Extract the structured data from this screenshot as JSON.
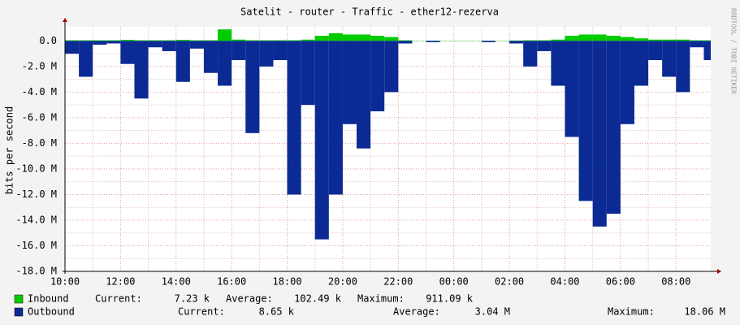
{
  "chart_data": {
    "type": "area",
    "title": "Satelit - router - Traffic - ether12-rezerva",
    "y_label": "bits per second",
    "side_text": "RRDTOOL / TOBI OETIKER",
    "x": [
      10,
      10.5,
      11,
      11.5,
      12,
      12.5,
      13,
      13.5,
      14,
      14.5,
      15,
      15.5,
      16,
      16.5,
      17,
      17.5,
      18,
      18.5,
      19,
      19.5,
      20,
      20.5,
      21,
      21.5,
      22,
      22.5,
      23,
      23.5,
      24,
      24.5,
      25,
      25.5,
      26,
      26.5,
      27,
      27.5,
      28,
      28.5,
      29,
      29.5,
      30,
      30.5,
      31,
      31.5,
      32,
      32.5,
      33
    ],
    "xlim": [
      10,
      33.25
    ],
    "xticks": [
      {
        "value": 10,
        "label": "10:00"
      },
      {
        "value": 12,
        "label": "12:00"
      },
      {
        "value": 14,
        "label": "14:00"
      },
      {
        "value": 16,
        "label": "16:00"
      },
      {
        "value": 18,
        "label": "18:00"
      },
      {
        "value": 20,
        "label": "20:00"
      },
      {
        "value": 22,
        "label": "22:00"
      },
      {
        "value": 24,
        "label": "00:00"
      },
      {
        "value": 26,
        "label": "02:00"
      },
      {
        "value": 28,
        "label": "04:00"
      },
      {
        "value": 30,
        "label": "06:00"
      },
      {
        "value": 32,
        "label": "08:00"
      }
    ],
    "ylim": [
      -18000000,
      1100000
    ],
    "yticks": [
      {
        "value": 0,
        "label": "0.0"
      },
      {
        "value": -2000000,
        "label": "-2.0 M"
      },
      {
        "value": -4000000,
        "label": "-4.0 M"
      },
      {
        "value": -6000000,
        "label": "-6.0 M"
      },
      {
        "value": -8000000,
        "label": "-8.0 M"
      },
      {
        "value": -10000000,
        "label": "-10.0 M"
      },
      {
        "value": -12000000,
        "label": "-12.0 M"
      },
      {
        "value": -14000000,
        "label": "-14.0 M"
      },
      {
        "value": -16000000,
        "label": "-16.0 M"
      },
      {
        "value": -18000000,
        "label": "-18.0 M"
      }
    ],
    "grid": true,
    "stat_labels": [
      "Current:",
      "Average:",
      "Maximum:"
    ],
    "series": [
      {
        "name": "Inbound",
        "color": "#00cc00",
        "current": "7.23 k",
        "average": "102.49 k",
        "maximum": "911.09 k",
        "values": [
          50000,
          50000,
          50000,
          50000,
          80000,
          50000,
          50000,
          50000,
          80000,
          50000,
          50000,
          900000,
          100000,
          50000,
          50000,
          50000,
          50000,
          100000,
          400000,
          600000,
          500000,
          500000,
          400000,
          300000,
          50000,
          20000,
          20000,
          20000,
          20000,
          20000,
          20000,
          20000,
          30000,
          50000,
          50000,
          100000,
          400000,
          500000,
          500000,
          400000,
          300000,
          200000,
          100000,
          100000,
          100000,
          50000,
          50000
        ]
      },
      {
        "name": "Outbound",
        "color": "#0c2a94",
        "current": "8.65 k",
        "average": "3.04 M",
        "maximum": "18.06 M",
        "values": [
          -1000000,
          -2800000,
          -300000,
          -200000,
          -1800000,
          -4500000,
          -500000,
          -800000,
          -3200000,
          -600000,
          -2500000,
          -3500000,
          -1500000,
          -7200000,
          -2000000,
          -1500000,
          -12000000,
          -5000000,
          -15500000,
          -12000000,
          -6500000,
          -8400000,
          -5500000,
          -4000000,
          -200000,
          0,
          -100000,
          0,
          0,
          0,
          -100000,
          0,
          -200000,
          -2000000,
          -800000,
          -3500000,
          -7500000,
          -12500000,
          -14500000,
          -13500000,
          -6500000,
          -3500000,
          -1500000,
          -2800000,
          -4000000,
          -500000,
          -1500000
        ]
      }
    ]
  }
}
